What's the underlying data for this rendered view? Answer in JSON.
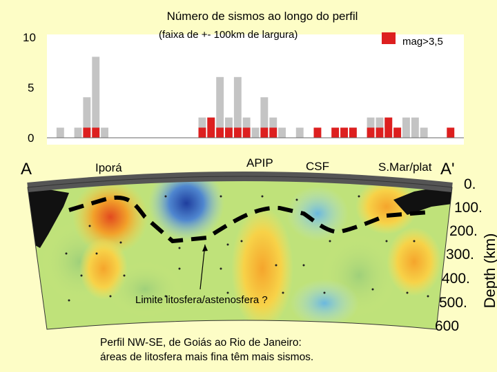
{
  "title": "Número de sismos ao longo do perfil",
  "subtitle": "(faixa de +- 100km de largura)",
  "legend": {
    "label": "mag>3,5",
    "color": "#dd1f1f"
  },
  "chart_data": {
    "type": "bar",
    "title": "Número de sismos ao longo do perfil",
    "subtitle": "(faixa de +- 100km de largura)",
    "yticks": [
      "10",
      "5",
      "0"
    ],
    "ylim": [
      0,
      10
    ],
    "series": [
      {
        "name": "todos",
        "color": "#c4c4c4",
        "values": [
          0,
          1,
          0,
          1,
          4,
          8,
          1,
          0,
          0,
          0,
          0,
          0,
          0,
          0,
          0,
          0,
          0,
          2,
          2,
          6,
          2,
          6,
          2,
          1,
          4,
          2,
          1,
          0,
          1,
          0,
          0,
          0,
          0,
          0,
          1,
          0,
          2,
          2,
          2,
          1,
          2,
          2,
          1,
          0,
          0,
          0,
          0
        ]
      },
      {
        "name": "mag>3,5",
        "color": "#dd1f1f",
        "values": [
          0,
          0,
          0,
          0,
          1,
          1,
          0,
          0,
          0,
          0,
          0,
          0,
          0,
          0,
          0,
          0,
          0,
          1,
          2,
          1,
          1,
          1,
          1,
          0,
          1,
          1,
          0,
          0,
          0,
          0,
          1,
          0,
          1,
          1,
          1,
          0,
          1,
          1,
          2,
          1,
          0,
          0,
          0,
          0,
          0,
          1,
          0
        ]
      }
    ]
  },
  "profile": {
    "start_label": "A",
    "end_label": "A'",
    "places": [
      "Iporá",
      "APIP",
      "CSF",
      "S.Mar/plat"
    ],
    "depth_ticks": [
      "0.",
      "100.",
      "200.",
      "300.",
      "400.",
      "500.",
      "600"
    ],
    "depth_title": "Depth (km)",
    "annotation": "Limite litosfera/astenosfera ?"
  },
  "caption": {
    "line1": "Perfil NW-SE, de Goiás ao Rio de Janeiro:",
    "line2": "áreas de litosfera mais fina têm mais sismos."
  }
}
